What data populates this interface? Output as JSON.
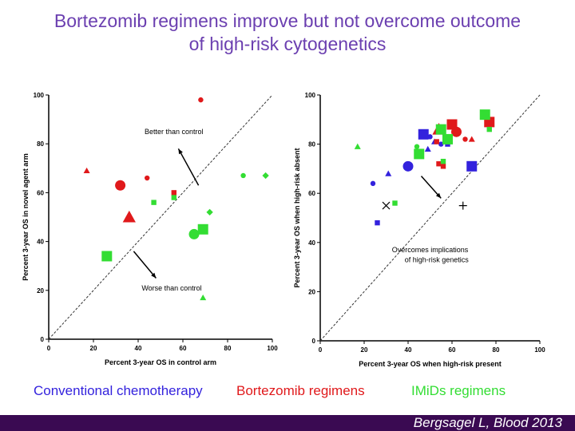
{
  "title_line1": "Bortezomib regimens improve but not overcome outcome",
  "title_line2": "of high-risk cytogenetics",
  "legend": {
    "conventional": "Conventional chemotherapy",
    "bortezomib": "Bortezomib regimens",
    "imids": "IMiDs regimens"
  },
  "colors": {
    "conventional": "#3322dd",
    "bortezomib": "#e0191b",
    "imids": "#33dd33",
    "title": "#6b3fb0",
    "footer": "#3a0a52"
  },
  "citation": "Bergsagel L, Blood 2013",
  "chart_data": [
    {
      "type": "scatter",
      "xlabel": "Percent 3-year OS in control arm",
      "ylabel": "Percent 3-year OS in novel agent arm",
      "xlim": [
        0,
        100
      ],
      "ylim": [
        0,
        100
      ],
      "xticks": [
        "0",
        "20",
        "40",
        "60",
        "80",
        "100"
      ],
      "yticks": [
        "0",
        "20",
        "40",
        "60",
        "80",
        "100"
      ],
      "reference_line": "y = x (dashed)",
      "annotations": [
        {
          "text": "Better than control",
          "x": 56,
          "y": 84,
          "arrow_from": [
            67,
            63
          ],
          "arrow_to": [
            58,
            78
          ]
        },
        {
          "text": "Worse than control",
          "x": 55,
          "y": 20,
          "arrow_from": [
            38,
            36
          ],
          "arrow_to": [
            48,
            25
          ]
        }
      ],
      "series": [
        {
          "name": "Bortezomib regimens",
          "color": "#e0191b",
          "points": [
            {
              "x": 68,
              "y": 98,
              "marker": "circle",
              "size": "small"
            },
            {
              "x": 17,
              "y": 69,
              "marker": "triangle",
              "size": "small"
            },
            {
              "x": 44,
              "y": 66,
              "marker": "circle",
              "size": "small"
            },
            {
              "x": 32,
              "y": 63,
              "marker": "circle",
              "size": "large"
            },
            {
              "x": 56,
              "y": 60,
              "marker": "square",
              "size": "small"
            },
            {
              "x": 36,
              "y": 50,
              "marker": "triangle",
              "size": "large"
            }
          ]
        },
        {
          "name": "IMiDs regimens",
          "color": "#33dd33",
          "points": [
            {
              "x": 87,
              "y": 67,
              "marker": "circle",
              "size": "small"
            },
            {
              "x": 97,
              "y": 67,
              "marker": "diamond",
              "size": "small"
            },
            {
              "x": 56,
              "y": 58,
              "marker": "square",
              "size": "small"
            },
            {
              "x": 47,
              "y": 56,
              "marker": "square",
              "size": "small"
            },
            {
              "x": 72,
              "y": 52,
              "marker": "diamond",
              "size": "small"
            },
            {
              "x": 69,
              "y": 45,
              "marker": "square",
              "size": "large"
            },
            {
              "x": 65,
              "y": 43,
              "marker": "circle",
              "size": "large"
            },
            {
              "x": 26,
              "y": 34,
              "marker": "square",
              "size": "large"
            },
            {
              "x": 69,
              "y": 17,
              "marker": "triangle",
              "size": "small"
            }
          ]
        }
      ]
    },
    {
      "type": "scatter",
      "xlabel": "Percent 3-year OS when high-risk present",
      "ylabel": "Percent 3-year OS when high-risk absent",
      "xlim": [
        0,
        100
      ],
      "ylim": [
        0,
        100
      ],
      "xticks": [
        "0",
        "20",
        "40",
        "60",
        "80",
        "100"
      ],
      "yticks": [
        "0",
        "20",
        "40",
        "60",
        "80",
        "100"
      ],
      "reference_line": "y = x (dashed)",
      "annotations": [
        {
          "text": "Overcomes implications",
          "x": 50,
          "y": 36
        },
        {
          "text": "of high-risk genetics",
          "x": 53,
          "y": 32,
          "arrow_from": [
            46,
            67
          ],
          "arrow_to": [
            55,
            58
          ]
        }
      ],
      "series": [
        {
          "name": "Conventional chemotherapy",
          "color": "#3322dd",
          "points": [
            {
              "x": 47,
              "y": 84,
              "marker": "square",
              "size": "large"
            },
            {
              "x": 50,
              "y": 83,
              "marker": "circle",
              "size": "small"
            },
            {
              "x": 52,
              "y": 81,
              "marker": "triangle",
              "size": "small"
            },
            {
              "x": 49,
              "y": 78,
              "marker": "triangle",
              "size": "small"
            },
            {
              "x": 55,
              "y": 80,
              "marker": "circle",
              "size": "small"
            },
            {
              "x": 58,
              "y": 80,
              "marker": "square",
              "size": "small"
            },
            {
              "x": 40,
              "y": 71,
              "marker": "circle",
              "size": "large"
            },
            {
              "x": 69,
              "y": 71,
              "marker": "square",
              "size": "large"
            },
            {
              "x": 31,
              "y": 68,
              "marker": "triangle",
              "size": "small"
            },
            {
              "x": 24,
              "y": 64,
              "marker": "circle",
              "size": "small"
            },
            {
              "x": 26,
              "y": 48,
              "marker": "square",
              "size": "small"
            }
          ]
        },
        {
          "name": "Bortezomib regimens",
          "color": "#e0191b",
          "points": [
            {
              "x": 60,
              "y": 88,
              "marker": "square",
              "size": "large"
            },
            {
              "x": 77,
              "y": 89,
              "marker": "square",
              "size": "large"
            },
            {
              "x": 54,
              "y": 86,
              "marker": "triangle",
              "size": "large"
            },
            {
              "x": 62,
              "y": 85,
              "marker": "circle",
              "size": "large"
            },
            {
              "x": 66,
              "y": 82,
              "marker": "circle",
              "size": "small"
            },
            {
              "x": 69,
              "y": 82,
              "marker": "triangle",
              "size": "small"
            },
            {
              "x": 53,
              "y": 81,
              "marker": "square",
              "size": "small"
            },
            {
              "x": 54,
              "y": 72,
              "marker": "square",
              "size": "small"
            },
            {
              "x": 56,
              "y": 71,
              "marker": "square",
              "size": "small"
            }
          ]
        },
        {
          "name": "IMiDs regimens",
          "color": "#33dd33",
          "points": [
            {
              "x": 75,
              "y": 92,
              "marker": "square",
              "size": "large"
            },
            {
              "x": 55,
              "y": 86,
              "marker": "square",
              "size": "large"
            },
            {
              "x": 77,
              "y": 86,
              "marker": "square",
              "size": "small"
            },
            {
              "x": 58,
              "y": 82,
              "marker": "square",
              "size": "large"
            },
            {
              "x": 44,
              "y": 79,
              "marker": "circle",
              "size": "small"
            },
            {
              "x": 17,
              "y": 79,
              "marker": "triangle",
              "size": "small"
            },
            {
              "x": 45,
              "y": 76,
              "marker": "square",
              "size": "large"
            },
            {
              "x": 56,
              "y": 73,
              "marker": "square",
              "size": "small"
            },
            {
              "x": 34,
              "y": 56,
              "marker": "square",
              "size": "small"
            }
          ]
        },
        {
          "name": "unlabeled markers",
          "color": "#000000",
          "points": [
            {
              "x": 30,
              "y": 55,
              "marker": "x",
              "size": "large"
            },
            {
              "x": 65,
              "y": 55,
              "marker": "plus",
              "size": "large"
            }
          ]
        }
      ]
    }
  ]
}
